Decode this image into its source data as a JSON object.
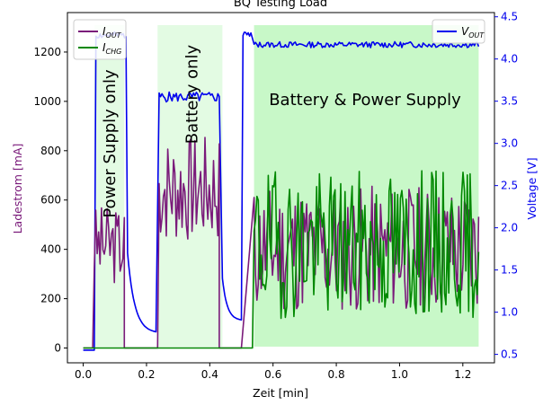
{
  "chart_data": {
    "type": "line",
    "title": "BQ Testing Load",
    "xlabel": "Zeit [min]",
    "ylabel_left": "Ladestrom [mA]",
    "ylabel_right": "Voltage [V]",
    "xlim": [
      -0.05,
      1.3
    ],
    "ylim_left": [
      -60,
      1360
    ],
    "ylim_right": [
      0.4,
      4.55
    ],
    "x_ticks": [
      "0.0",
      "0.2",
      "0.4",
      "0.6",
      "0.8",
      "1.0",
      "1.2"
    ],
    "y_left_ticks": [
      "0",
      "200",
      "400",
      "600",
      "800",
      "1000",
      "1200"
    ],
    "y_right_ticks": [
      "0.5",
      "1.0",
      "1.5",
      "2.0",
      "2.5",
      "3.0",
      "3.5",
      "4.0",
      "4.5"
    ],
    "regions": [
      {
        "label": "Power Supply only",
        "x": [
          0.035,
          0.13
        ],
        "color": "#e3fbe3"
      },
      {
        "label": "Battery only",
        "x": [
          0.235,
          0.44
        ],
        "color": "#e3fbe3"
      },
      {
        "label": "Battery & Power Supply",
        "x": [
          0.54,
          1.25
        ],
        "color": "#c8f8c8"
      }
    ],
    "legend_left": {
      "placement": "top-left",
      "entries": [
        {
          "main": "I",
          "sub": "OUT",
          "color": "#7a1a7a"
        },
        {
          "main": "I",
          "sub": "CHG",
          "color": "#008800"
        }
      ]
    },
    "legend_right": {
      "placement": "top-right",
      "entries": [
        {
          "main": "V",
          "sub": "OUT",
          "color": "#0000ee"
        }
      ]
    },
    "series": [
      {
        "name": "I_OUT",
        "axis": "left",
        "color": "#7a1a7a",
        "segments": [
          {
            "x0": 0.0,
            "x1": 0.03,
            "kind": "flat",
            "level": 0
          },
          {
            "x0": 0.035,
            "x1": 0.13,
            "kind": "noise",
            "mean": 420,
            "amp": 160,
            "seed": 3
          },
          {
            "x0": 0.13,
            "x1": 0.235,
            "kind": "flat",
            "level": 0
          },
          {
            "x0": 0.24,
            "x1": 0.43,
            "kind": "noise",
            "mean": 640,
            "amp": 220,
            "seed": 7
          },
          {
            "x0": 0.43,
            "x1": 0.5,
            "kind": "flat",
            "level": 0
          },
          {
            "x0": 0.54,
            "x1": 1.25,
            "kind": "noise",
            "mean": 400,
            "amp": 260,
            "seed": 11
          }
        ]
      },
      {
        "name": "I_CHG",
        "axis": "left",
        "color": "#008800",
        "segments": [
          {
            "x0": 0.0,
            "x1": 0.535,
            "kind": "flat",
            "level": 0
          },
          {
            "x0": 0.54,
            "x1": 1.25,
            "kind": "noise",
            "mean": 420,
            "amp": 300,
            "seed": 19
          }
        ]
      },
      {
        "name": "V_OUT",
        "axis": "right",
        "color": "#0000ee",
        "segments": [
          {
            "x0": 0.0,
            "x1": 0.035,
            "kind": "flat",
            "level": 0.55
          },
          {
            "x0": 0.04,
            "x1": 0.135,
            "kind": "noise",
            "mean": 4.28,
            "amp": 0.04,
            "seed": 2
          },
          {
            "x0": 0.14,
            "x1": 0.23,
            "kind": "decay",
            "from": 1.7,
            "to": 0.75
          },
          {
            "x0": 0.24,
            "x1": 0.43,
            "kind": "noise",
            "mean": 3.55,
            "amp": 0.06,
            "seed": 5
          },
          {
            "x0": 0.44,
            "x1": 0.5,
            "kind": "decay",
            "from": 1.4,
            "to": 0.9
          },
          {
            "x0": 0.505,
            "x1": 0.53,
            "kind": "noise",
            "mean": 4.3,
            "amp": 0.04,
            "seed": 9
          },
          {
            "x0": 0.54,
            "x1": 1.25,
            "kind": "noise",
            "mean": 4.17,
            "amp": 0.035,
            "seed": 13
          }
        ]
      }
    ]
  }
}
